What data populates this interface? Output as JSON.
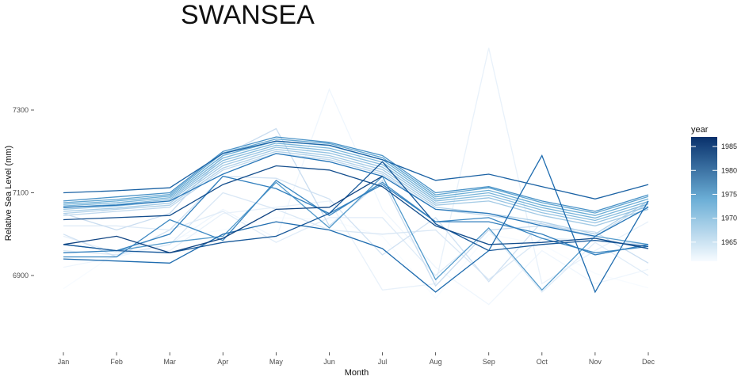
{
  "chart_data": {
    "type": "line",
    "title": "SWANSEA",
    "xlabel": "Month",
    "ylabel": "Relative Sea Level (mm)",
    "categories": [
      "Jan",
      "Feb",
      "Mar",
      "Apr",
      "May",
      "Jun",
      "Jul",
      "Aug",
      "Sep",
      "Oct",
      "Nov",
      "Dec"
    ],
    "y_ticks": [
      6900,
      7100,
      7300
    ],
    "ylim": [
      6810,
      7490
    ],
    "grid": false,
    "legend": {
      "title": "year",
      "position": "right",
      "range": [
        1961,
        1987
      ],
      "ticks": [
        1965,
        1970,
        1975,
        1980,
        1985
      ],
      "color_low": "#f7fbff",
      "color_high": "#08306b"
    },
    "series": [
      {
        "year": 1961,
        "values": [
          6868,
          6955,
          6990,
          7010,
          7040,
          7035,
          6995,
          6845,
          7000,
          6975,
          6905,
          6870
        ]
      },
      {
        "year": 1962,
        "values": [
          6920,
          6945,
          6975,
          7060,
          6990,
          7350,
          7060,
          6920,
          6830,
          6960,
          6880,
          6915
        ]
      },
      {
        "year": 1963,
        "values": [
          6995,
          6955,
          6960,
          7050,
          7065,
          7080,
          6865,
          6880,
          7450,
          6880,
          6960,
          7030
        ]
      },
      {
        "year": 1964,
        "values": [
          7020,
          7020,
          7010,
          7055,
          6980,
          7040,
          7040,
          6900,
          7010,
          6860,
          6980,
          6900
        ]
      },
      {
        "year": 1965,
        "values": [
          6960,
          6950,
          6975,
          7100,
          7060,
          7010,
          7000,
          7010,
          6890,
          6990,
          6985,
          6975
        ]
      },
      {
        "year": 1966,
        "values": [
          7000,
          6945,
          7010,
          7140,
          7135,
          7085,
          6950,
          7040,
          6885,
          7030,
          6990,
          6965
        ]
      },
      {
        "year": 1967,
        "values": [
          7050,
          7010,
          7050,
          7190,
          7255,
          7020,
          7130,
          6875,
          7010,
          7020,
          7005,
          6930
        ]
      },
      {
        "year": 1968,
        "values": [
          7045,
          7055,
          7065,
          7155,
          7195,
          7180,
          7145,
          7060,
          7045,
          7025,
          6995,
          7075
        ]
      },
      {
        "year": 1969,
        "values": [
          7050,
          7060,
          7070,
          7160,
          7200,
          7185,
          7150,
          7065,
          7050,
          7030,
          7000,
          7080
        ]
      },
      {
        "year": 1970,
        "values": [
          7055,
          7063,
          7075,
          7166,
          7205,
          7190,
          7156,
          7070,
          7080,
          7045,
          7020,
          7060
        ]
      },
      {
        "year": 1971,
        "values": [
          7060,
          7068,
          7080,
          7172,
          7210,
          7196,
          7162,
          7075,
          7088,
          7052,
          7027,
          7067
        ]
      },
      {
        "year": 1972,
        "values": [
          7064,
          7072,
          7084,
          7178,
          7215,
          7202,
          7168,
          7080,
          7094,
          7058,
          7033,
          7073
        ]
      },
      {
        "year": 1973,
        "values": [
          7068,
          7076,
          7088,
          7184,
          7220,
          7208,
          7174,
          7085,
          7100,
          7064,
          7039,
          7079
        ]
      },
      {
        "year": 1974,
        "values": [
          7072,
          7080,
          7092,
          7190,
          7225,
          7214,
          7180,
          7090,
          7106,
          7070,
          7045,
          7085
        ]
      },
      {
        "year": 1975,
        "values": [
          7076,
          7084,
          7096,
          7196,
          7230,
          7219,
          7185,
          7095,
          7112,
          7076,
          7051,
          7091
        ]
      },
      {
        "year": 1976,
        "values": [
          6975,
          6960,
          6980,
          6995,
          7125,
          7015,
          7140,
          6890,
          7015,
          6865,
          6995,
          6975
        ]
      },
      {
        "year": 1977,
        "values": [
          7080,
          7090,
          7100,
          7200,
          7235,
          7222,
          7190,
          7100,
          7115,
          7080,
          7055,
          7095
        ]
      },
      {
        "year": 1978,
        "values": [
          6945,
          6945,
          7035,
          6985,
          7130,
          7045,
          7125,
          7030,
          7040,
          6990,
          6955,
          6970
        ]
      },
      {
        "year": 1979,
        "values": [
          6955,
          6960,
          7000,
          7140,
          7110,
          7050,
          7120,
          7030,
          7030,
          7000,
          6950,
          6975
        ]
      },
      {
        "year": 1980,
        "values": [
          7065,
          7070,
          7080,
          7145,
          7195,
          7175,
          7140,
          7060,
          7050,
          7020,
          6995,
          7065
        ]
      },
      {
        "year": 1981,
        "values": [
          6940,
          6935,
          6930,
          7000,
          7030,
          7010,
          6965,
          6860,
          6960,
          7190,
          6860,
          7080
        ]
      },
      {
        "year": 1982,
        "values": [
          7100,
          7105,
          7112,
          7195,
          7225,
          7215,
          7180,
          7130,
          7145,
          7115,
          7085,
          7120
        ]
      },
      {
        "year": 1983,
        "values": [
          6975,
          6960,
          6955,
          6980,
          6995,
          7050,
          7175,
          7025,
          6960,
          6975,
          6985,
          6970
        ]
      },
      {
        "year": 1984,
        "values": [
          7035,
          7040,
          7045,
          7120,
          7165,
          7155,
          7115,
          7020,
          6975,
          6980,
          6990,
          6965
        ]
      },
      {
        "year": 1985,
        "values": [
          6975,
          6995,
          6955,
          6990,
          7060,
          7065,
          7140,
          null,
          null,
          null,
          null,
          null
        ]
      }
    ]
  }
}
